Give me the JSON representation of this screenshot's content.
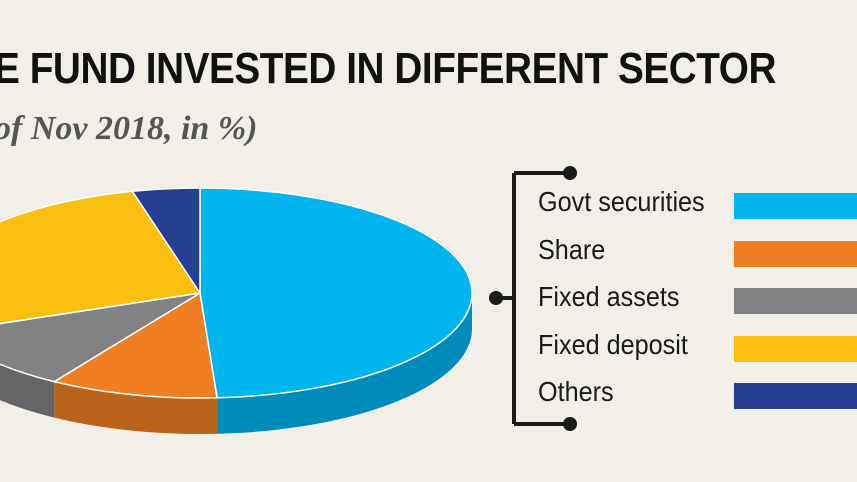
{
  "title": "E FUND INVESTED IN DIFFERENT SECTOR",
  "subtitle": "of Nov 2018, in %)",
  "chart_data": {
    "type": "pie",
    "series": [
      {
        "name": "Govt securities",
        "value": 49,
        "color": "#00b4ee"
      },
      {
        "name": "Share",
        "value": 10,
        "color": "#f07e23"
      },
      {
        "name": "Fixed assets",
        "value": 10,
        "color": "#808284"
      },
      {
        "name": "Fixed deposit",
        "value": 27,
        "color": "#fbc00f"
      },
      {
        "name": "Others",
        "value": 4,
        "color": "#253e8f"
      }
    ],
    "legend_position": "right"
  }
}
